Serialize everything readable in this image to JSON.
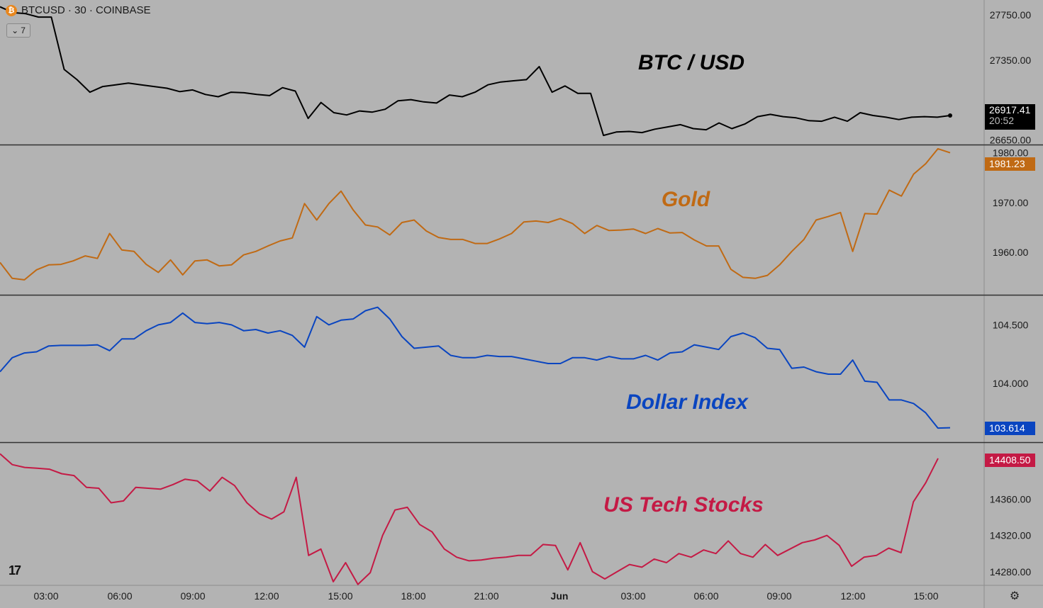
{
  "header": {
    "coin_icon": "bitcoin-icon",
    "symbol_line": "BTCUSD · 30 · COINBASE",
    "collapse_count": "7"
  },
  "time_axis": {
    "labels": [
      "03:00",
      "06:00",
      "09:00",
      "12:00",
      "15:00",
      "18:00",
      "21:00",
      "Jun",
      "03:00",
      "06:00",
      "09:00",
      "12:00",
      "15:00"
    ]
  },
  "colors": {
    "btc": "#000000",
    "gold": "#c06a14",
    "dxy": "#0a45c0",
    "tech": "#c41a45",
    "background": "#b3b3b3",
    "divider": "#333333"
  },
  "chart_data": [
    {
      "type": "line",
      "name": "BTC / USD",
      "title": "BTC / USD",
      "ylim": [
        26610,
        27880
      ],
      "yticks": [
        27750.0,
        27350.0,
        26650.0
      ],
      "ytick_labels": [
        "27750.00",
        "27350.00",
        "26650.00"
      ],
      "last_value": "26917.41",
      "last_value_sub": "20:52",
      "values": [
        27820,
        27770,
        27760,
        27730,
        27730,
        27270,
        27180,
        27070,
        27120,
        27135,
        27150,
        27135,
        27120,
        27105,
        27075,
        27090,
        27050,
        27030,
        27070,
        27065,
        27050,
        27040,
        27110,
        27080,
        26840,
        26980,
        26890,
        26870,
        26905,
        26895,
        26920,
        26995,
        27005,
        26985,
        26975,
        27045,
        27030,
        27070,
        27135,
        27160,
        27170,
        27180,
        27295,
        27070,
        27125,
        27060,
        27060,
        26690,
        26720,
        26725,
        26715,
        26745,
        26765,
        26785,
        26750,
        26740,
        26800,
        26750,
        26790,
        26855,
        26875,
        26855,
        26845,
        26820,
        26815,
        26850,
        26815,
        26890,
        26865,
        26850,
        26830,
        26850,
        26855,
        26850,
        26865
      ]
    },
    {
      "type": "line",
      "name": "Gold",
      "title": "Gold",
      "ylim": [
        1951.5,
        1981.5
      ],
      "yticks": [
        1980.0,
        1970.0,
        1960.0
      ],
      "ytick_labels": [
        "1980.00",
        "1970.00",
        "1960.00"
      ],
      "last_value": "1981.23",
      "values": [
        1958.0,
        1954.8,
        1954.5,
        1956.5,
        1957.5,
        1957.6,
        1958.3,
        1959.3,
        1958.8,
        1963.8,
        1960.5,
        1960.2,
        1957.6,
        1956.0,
        1958.5,
        1955.5,
        1958.3,
        1958.5,
        1957.3,
        1957.5,
        1959.5,
        1960.2,
        1961.3,
        1962.3,
        1962.9,
        1969.8,
        1966.5,
        1969.8,
        1972.3,
        1968.5,
        1965.5,
        1965.1,
        1963.5,
        1966.0,
        1966.5,
        1964.3,
        1963.0,
        1962.6,
        1962.6,
        1961.8,
        1961.8,
        1962.7,
        1963.8,
        1966.1,
        1966.3,
        1966.0,
        1966.8,
        1965.8,
        1963.8,
        1965.4,
        1964.4,
        1964.5,
        1964.7,
        1963.8,
        1964.8,
        1963.9,
        1964.0,
        1962.5,
        1961.3,
        1961.3,
        1956.6,
        1955.0,
        1954.8,
        1955.4,
        1957.5,
        1960.2,
        1962.6,
        1966.5,
        1967.2,
        1968.0,
        1960.2,
        1967.8,
        1967.7,
        1972.5,
        1971.3,
        1975.7,
        1977.8,
        1980.8,
        1980.0
      ]
    },
    {
      "type": "line",
      "name": "Dollar Index",
      "title": "Dollar Index",
      "ylim": [
        103.5,
        104.75
      ],
      "yticks": [
        104.5,
        104.0
      ],
      "ytick_labels": [
        "104.500",
        "104.000"
      ],
      "last_value": "103.614",
      "values": [
        104.1,
        104.22,
        104.26,
        104.27,
        104.32,
        104.325,
        104.325,
        104.325,
        104.33,
        104.28,
        104.38,
        104.38,
        104.45,
        104.5,
        104.52,
        104.6,
        104.52,
        104.51,
        104.52,
        104.5,
        104.45,
        104.46,
        104.43,
        104.45,
        104.41,
        104.31,
        104.57,
        104.5,
        104.54,
        104.55,
        104.62,
        104.65,
        104.55,
        104.4,
        104.3,
        104.31,
        104.32,
        104.24,
        104.22,
        104.22,
        104.24,
        104.23,
        104.23,
        104.21,
        104.19,
        104.17,
        104.17,
        104.22,
        104.22,
        104.2,
        104.23,
        104.21,
        104.21,
        104.24,
        104.2,
        104.26,
        104.27,
        104.33,
        104.31,
        104.29,
        104.4,
        104.43,
        104.39,
        104.3,
        104.29,
        104.13,
        104.14,
        104.1,
        104.08,
        104.08,
        104.2,
        104.02,
        104.01,
        103.86,
        103.86,
        103.83,
        103.75,
        103.62,
        103.623
      ]
    },
    {
      "type": "line",
      "name": "US Tech Stocks",
      "title": "US Tech Stocks",
      "ylim": [
        14265,
        14422
      ],
      "yticks": [
        14360.0,
        14320.0,
        14280.0
      ],
      "ytick_labels": [
        "14360.00",
        "14320.00",
        "14280.00"
      ],
      "last_value": "14408.50",
      "values": [
        14410,
        14398,
        14395,
        14394,
        14393,
        14388,
        14386,
        14373,
        14372,
        14356,
        14358,
        14373,
        14372,
        14371,
        14376,
        14382,
        14380,
        14369,
        14384,
        14375,
        14356,
        14344,
        14338,
        14346,
        14384,
        14298,
        14305,
        14269,
        14290,
        14266,
        14279,
        14320,
        14348,
        14351,
        14332,
        14324,
        14305,
        14296,
        14292,
        14293,
        14295,
        14296,
        14298,
        14298,
        14310,
        14309,
        14282,
        14312,
        14280,
        14272,
        14280,
        14288,
        14285,
        14294,
        14290,
        14300,
        14296,
        14304,
        14300,
        14314,
        14300,
        14296,
        14310,
        14298,
        14305,
        14312,
        14315,
        14320,
        14309,
        14286,
        14296,
        14298,
        14306,
        14301,
        14357,
        14378,
        14405
      ]
    }
  ]
}
